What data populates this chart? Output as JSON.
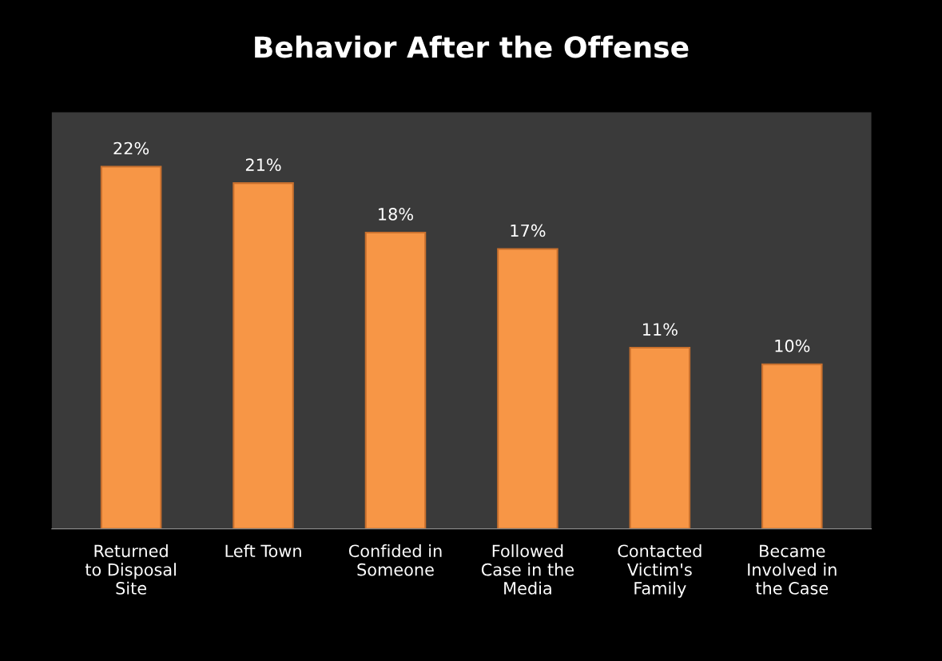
{
  "chart_data": {
    "type": "bar",
    "title": "Behavior After the Offense",
    "categories": [
      "Returned\nto Disposal\nSite",
      "Left Town",
      "Confided in\nSomeone",
      "Followed\nCase in the\nMedia",
      "Contacted\nVictim's\nFamily",
      "Became\nInvolved in\nthe Case"
    ],
    "values": [
      22,
      21,
      18,
      17,
      11,
      10
    ],
    "value_labels": [
      "22%",
      "21%",
      "18%",
      "17%",
      "11%",
      "10%"
    ],
    "color": "#f79646",
    "grid": false,
    "legend": false
  }
}
